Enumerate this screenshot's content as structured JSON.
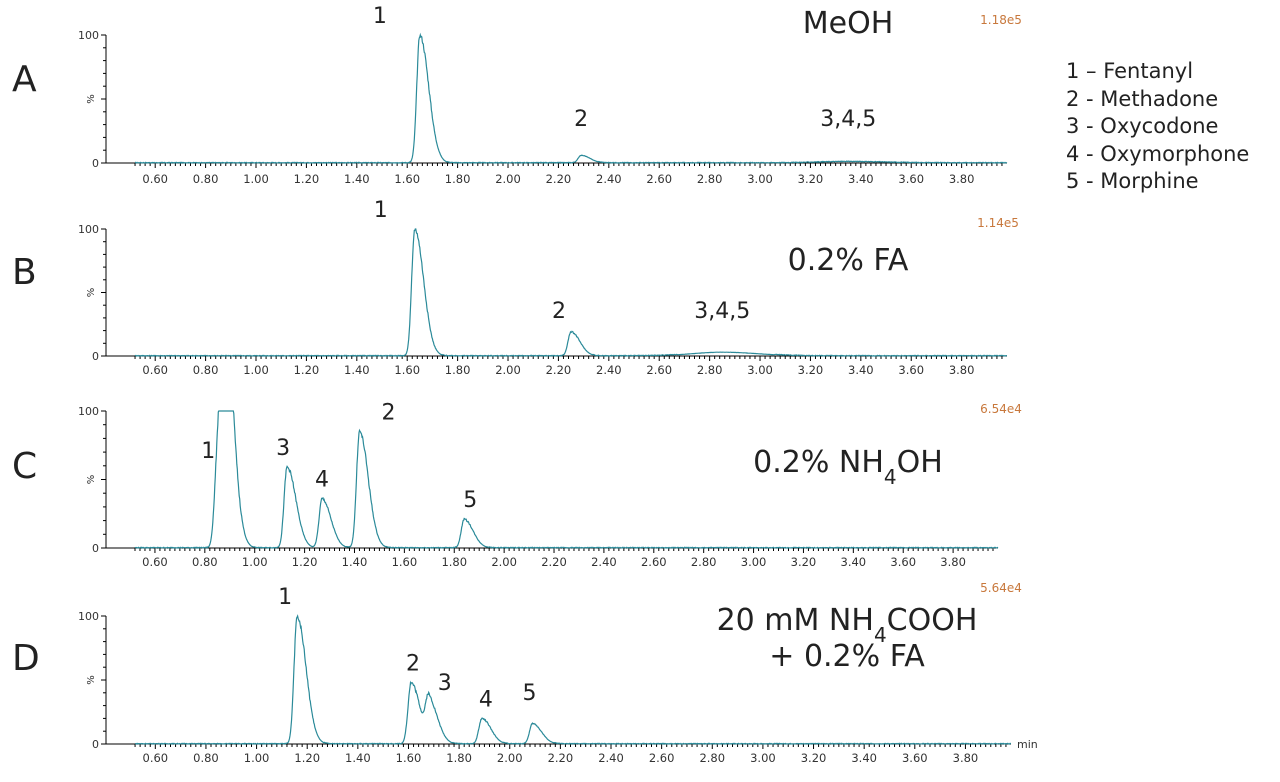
{
  "legend": {
    "items": [
      "1 – Fentanyl",
      "2 - Methadone",
      "3 - Oxycodone",
      "4 - Oxymorphone",
      "5 - Morphine"
    ]
  },
  "chart_data": [
    {
      "type": "line",
      "panel_letter": "A",
      "condition": "MeOH",
      "max_intensity": "1.18e5",
      "ylabel": "%",
      "xlabel": "",
      "xlim": [
        0.5,
        3.98
      ],
      "ylim": [
        0,
        100
      ],
      "x_ticks": [
        "0.60",
        "0.80",
        "1.00",
        "1.20",
        "1.40",
        "1.60",
        "1.80",
        "2.00",
        "2.20",
        "2.40",
        "2.60",
        "2.80",
        "3.00",
        "3.20",
        "3.40",
        "3.60",
        "3.80"
      ],
      "y_ticks": [
        "0",
        "%",
        "100"
      ],
      "color": "#2b8a99",
      "peaks": [
        {
          "label": "1",
          "rt": 1.65,
          "height": 100
        },
        {
          "label": "2",
          "rt": 2.29,
          "height": 6
        },
        {
          "label": "3,4,5",
          "rt": 3.35,
          "height": 1
        }
      ]
    },
    {
      "type": "line",
      "panel_letter": "B",
      "condition": "0.2% FA",
      "max_intensity": "1.14e5",
      "ylabel": "%",
      "xlabel": "",
      "xlim": [
        0.5,
        3.98
      ],
      "ylim": [
        0,
        100
      ],
      "x_ticks": [
        "0.60",
        "0.80",
        "1.00",
        "1.20",
        "1.40",
        "1.60",
        "1.80",
        "2.00",
        "2.20",
        "2.40",
        "2.60",
        "2.80",
        "3.00",
        "3.20",
        "3.40",
        "3.60",
        "3.80"
      ],
      "y_ticks": [
        "0",
        "%",
        "100"
      ],
      "color": "#2b8a99",
      "peaks": [
        {
          "label": "1",
          "rt": 1.63,
          "height": 100
        },
        {
          "label": "2",
          "rt": 2.25,
          "height": 19
        },
        {
          "label": "3,4,5",
          "rt": 2.85,
          "height": 3
        }
      ]
    },
    {
      "type": "line",
      "panel_letter": "C",
      "condition": "0.2% NH4OH",
      "max_intensity": "6.54e4",
      "ylabel": "%",
      "xlabel": "",
      "xlim": [
        0.5,
        3.98
      ],
      "ylim": [
        0,
        100
      ],
      "x_ticks": [
        "0.60",
        "0.80",
        "1.00",
        "1.20",
        "1.40",
        "1.60",
        "1.80",
        "2.00",
        "2.20",
        "2.40",
        "2.60",
        "2.80",
        "3.00",
        "3.20",
        "3.40",
        "3.60",
        "3.80"
      ],
      "y_ticks": [
        "0",
        "%",
        "100"
      ],
      "color": "#2b8a99",
      "peaks": [
        {
          "label": "1",
          "rt": 0.85,
          "height": 57
        },
        {
          "label": "",
          "rt": 0.87,
          "height": 100
        },
        {
          "label": "",
          "rt": 0.885,
          "height": 67
        },
        {
          "label": "3",
          "rt": 1.13,
          "height": 59
        },
        {
          "label": "4",
          "rt": 1.27,
          "height": 36
        },
        {
          "label": "2",
          "rt": 1.42,
          "height": 85
        },
        {
          "label": "5",
          "rt": 1.84,
          "height": 21
        }
      ]
    },
    {
      "type": "line",
      "panel_letter": "D",
      "condition": "20 mM NH4COOH + 0.2% FA",
      "max_intensity": "5.64e4",
      "ylabel": "%",
      "xlabel": "min",
      "xlim": [
        0.5,
        3.98
      ],
      "ylim": [
        0,
        100
      ],
      "x_ticks": [
        "0.60",
        "0.80",
        "1.00",
        "1.20",
        "1.40",
        "1.60",
        "1.80",
        "2.00",
        "2.20",
        "2.40",
        "2.60",
        "2.80",
        "3.00",
        "3.20",
        "3.40",
        "3.60",
        "3.80"
      ],
      "y_ticks": [
        "0",
        "%",
        "100"
      ],
      "color": "#2b8a99",
      "peaks": [
        {
          "label": "1",
          "rt": 1.16,
          "height": 100
        },
        {
          "label": "2",
          "rt": 1.61,
          "height": 48
        },
        {
          "label": "3",
          "rt": 1.68,
          "height": 33
        },
        {
          "label": "4",
          "rt": 1.89,
          "height": 20
        },
        {
          "label": "5",
          "rt": 2.09,
          "height": 16
        }
      ]
    }
  ]
}
